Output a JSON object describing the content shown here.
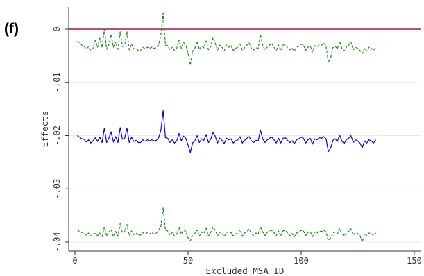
{
  "panel_label": "(f)",
  "chart_data": {
    "type": "line",
    "title": "",
    "xlabel": "Excluded MSA ID",
    "ylabel": "Effects",
    "xlim": [
      0,
      150
    ],
    "ylim": [
      -0.0405,
      0.0035
    ],
    "xticks": [
      0,
      50,
      100,
      150
    ],
    "xtick_labels": [
      "0",
      "50",
      "100",
      "150"
    ],
    "yticks": [
      0,
      -0.01,
      -0.02,
      -0.03,
      -0.04
    ],
    "ytick_labels": [
      "0",
      "-.01",
      "-.02",
      "-.03",
      "-.04"
    ],
    "grid": true,
    "reference_line": {
      "y": 0,
      "color": "#a0174a"
    },
    "x_start": 1,
    "x_end": 133,
    "series": [
      {
        "role": "upper-bound",
        "color": "#1f8c1f",
        "dash": true,
        "values": [
          -0.0023,
          -0.0025,
          -0.003,
          -0.0032,
          -0.0037,
          -0.0033,
          -0.004,
          -0.0036,
          -0.0021,
          -0.0034,
          -0.0017,
          -0.0035,
          0.0,
          -0.0038,
          -0.0029,
          -0.001,
          -0.0034,
          -0.0024,
          -0.0038,
          -0.0005,
          -0.0033,
          -0.003,
          -0.0005,
          -0.0039,
          -0.0028,
          -0.0037,
          -0.0036,
          -0.004,
          -0.004,
          -0.0034,
          -0.0037,
          -0.0034,
          -0.0036,
          -0.0034,
          -0.0036,
          -0.0035,
          -0.003,
          -0.001,
          0.003,
          -0.003,
          -0.0031,
          -0.0039,
          -0.0034,
          -0.004,
          -0.0036,
          -0.002,
          -0.0036,
          -0.0025,
          -0.003,
          -0.0045,
          -0.0068,
          -0.0042,
          -0.0036,
          -0.0023,
          -0.0038,
          -0.0032,
          -0.0035,
          -0.0022,
          -0.0039,
          -0.0033,
          -0.0016,
          -0.0026,
          -0.004,
          -0.003,
          -0.0034,
          -0.0041,
          -0.003,
          -0.0034,
          -0.0031,
          -0.004,
          -0.0036,
          -0.0034,
          -0.0026,
          -0.004,
          -0.0035,
          -0.003,
          -0.0026,
          -0.0036,
          -0.0039,
          -0.0035,
          -0.0036,
          -0.001,
          -0.0031,
          -0.0039,
          -0.0034,
          -0.003,
          -0.0027,
          -0.0034,
          -0.004,
          -0.003,
          -0.004,
          -0.003,
          -0.0029,
          -0.0035,
          -0.0039,
          -0.0036,
          -0.0041,
          -0.0034,
          -0.0032,
          -0.0028,
          -0.003,
          -0.004,
          -0.0034,
          -0.0031,
          -0.0043,
          -0.0031,
          -0.0034,
          -0.0029,
          -0.003,
          -0.0026,
          -0.0032,
          -0.0062,
          -0.0055,
          -0.0035,
          -0.0032,
          -0.0037,
          -0.0023,
          -0.0036,
          -0.0041,
          -0.0034,
          -0.003,
          -0.0024,
          -0.0039,
          -0.0034,
          -0.0036,
          -0.004,
          -0.0046,
          -0.0036,
          -0.0041,
          -0.0034,
          -0.0036,
          -0.004,
          -0.0034
        ]
      },
      {
        "role": "estimate",
        "color": "#0000ee",
        "dash": false,
        "values": [
          -0.02,
          -0.0203,
          -0.0206,
          -0.0207,
          -0.0212,
          -0.0208,
          -0.0214,
          -0.021,
          -0.0204,
          -0.0211,
          -0.0203,
          -0.0213,
          -0.0186,
          -0.0213,
          -0.0205,
          -0.0193,
          -0.0212,
          -0.0202,
          -0.0213,
          -0.0185,
          -0.0207,
          -0.0205,
          -0.0186,
          -0.0213,
          -0.0203,
          -0.0211,
          -0.0209,
          -0.0213,
          -0.0213,
          -0.0208,
          -0.0211,
          -0.0208,
          -0.021,
          -0.0208,
          -0.021,
          -0.0209,
          -0.0204,
          -0.019,
          -0.0153,
          -0.0204,
          -0.0205,
          -0.0213,
          -0.0208,
          -0.0214,
          -0.021,
          -0.0196,
          -0.021,
          -0.0201,
          -0.0205,
          -0.0218,
          -0.0232,
          -0.0214,
          -0.021,
          -0.02,
          -0.0213,
          -0.0206,
          -0.0209,
          -0.0198,
          -0.0213,
          -0.0207,
          -0.0194,
          -0.0201,
          -0.0214,
          -0.0205,
          -0.0209,
          -0.0215,
          -0.0205,
          -0.0208,
          -0.0206,
          -0.0214,
          -0.021,
          -0.0208,
          -0.0202,
          -0.0214,
          -0.0209,
          -0.0205,
          -0.0202,
          -0.021,
          -0.0213,
          -0.0209,
          -0.021,
          -0.019,
          -0.0206,
          -0.0213,
          -0.0208,
          -0.0205,
          -0.0203,
          -0.0208,
          -0.0214,
          -0.0205,
          -0.0214,
          -0.0205,
          -0.0204,
          -0.0209,
          -0.0213,
          -0.021,
          -0.0215,
          -0.0208,
          -0.0206,
          -0.0203,
          -0.0205,
          -0.0214,
          -0.0208,
          -0.0205,
          -0.0216,
          -0.0206,
          -0.0208,
          -0.0204,
          -0.0205,
          -0.0202,
          -0.0206,
          -0.023,
          -0.0224,
          -0.0209,
          -0.0206,
          -0.0211,
          -0.0199,
          -0.021,
          -0.0215,
          -0.0208,
          -0.0205,
          -0.02,
          -0.0213,
          -0.0208,
          -0.021,
          -0.0214,
          -0.0223,
          -0.021,
          -0.0214,
          -0.0208,
          -0.021,
          -0.0214,
          -0.0208
        ]
      },
      {
        "role": "lower-bound",
        "color": "#1f8c1f",
        "dash": true,
        "values": [
          -0.0377,
          -0.038,
          -0.0382,
          -0.0383,
          -0.0387,
          -0.0383,
          -0.0389,
          -0.0385,
          -0.0384,
          -0.0388,
          -0.0383,
          -0.039,
          -0.0372,
          -0.0389,
          -0.0381,
          -0.0376,
          -0.039,
          -0.038,
          -0.0389,
          -0.0365,
          -0.0383,
          -0.038,
          -0.0367,
          -0.0388,
          -0.0379,
          -0.0386,
          -0.0383,
          -0.0387,
          -0.0387,
          -0.0382,
          -0.0386,
          -0.0382,
          -0.0385,
          -0.0382,
          -0.0385,
          -0.0383,
          -0.0378,
          -0.037,
          -0.0336,
          -0.0378,
          -0.0379,
          -0.0387,
          -0.0382,
          -0.0389,
          -0.0385,
          -0.0372,
          -0.0385,
          -0.0377,
          -0.038,
          -0.0392,
          -0.0398,
          -0.0387,
          -0.0384,
          -0.0377,
          -0.0389,
          -0.0381,
          -0.0384,
          -0.0374,
          -0.0389,
          -0.0382,
          -0.0372,
          -0.0377,
          -0.0389,
          -0.0381,
          -0.0384,
          -0.039,
          -0.0381,
          -0.0383,
          -0.0382,
          -0.0389,
          -0.0385,
          -0.0383,
          -0.0377,
          -0.0389,
          -0.0383,
          -0.038,
          -0.0376,
          -0.0384,
          -0.0388,
          -0.0383,
          -0.0385,
          -0.0371,
          -0.0381,
          -0.0388,
          -0.0382,
          -0.0379,
          -0.0378,
          -0.0382,
          -0.0388,
          -0.0379,
          -0.0389,
          -0.0379,
          -0.0378,
          -0.0383,
          -0.0388,
          -0.0384,
          -0.039,
          -0.0383,
          -0.0381,
          -0.0378,
          -0.0379,
          -0.0388,
          -0.0382,
          -0.038,
          -0.039,
          -0.0381,
          -0.0383,
          -0.0379,
          -0.038,
          -0.0378,
          -0.0381,
          -0.0397,
          -0.0393,
          -0.0383,
          -0.0381,
          -0.0385,
          -0.0375,
          -0.0384,
          -0.0389,
          -0.0382,
          -0.038,
          -0.0375,
          -0.0387,
          -0.0382,
          -0.0384,
          -0.0388,
          -0.04,
          -0.0384,
          -0.0388,
          -0.0383,
          -0.0384,
          -0.0388,
          -0.0383
        ]
      }
    ]
  }
}
